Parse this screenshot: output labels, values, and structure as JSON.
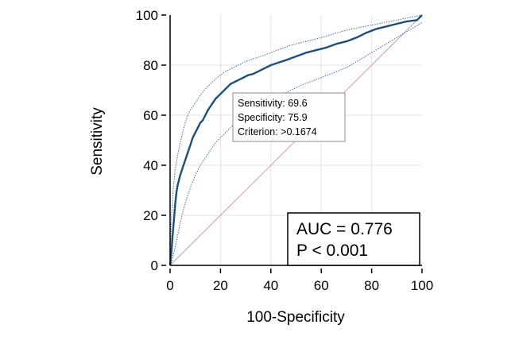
{
  "chart_data": {
    "type": "line",
    "title": "",
    "xlabel": "100-Specificity",
    "ylabel": "Sensitivity",
    "xlim": [
      0,
      100
    ],
    "ylim": [
      0,
      100
    ],
    "xticks": [
      0,
      20,
      40,
      60,
      80,
      100
    ],
    "yticks": [
      0,
      20,
      40,
      60,
      80,
      100
    ],
    "grid": true,
    "colors": {
      "roc": "#1f4e79",
      "ci": "#3a6aa8",
      "reference": "#c9a0a6",
      "grid": "#e3e3e3"
    },
    "series": [
      {
        "role": "roc",
        "x": [
          0,
          0.5,
          1,
          1.5,
          2,
          2.5,
          3,
          4,
          5,
          6,
          7,
          8,
          9,
          10,
          11,
          12,
          13,
          14,
          15,
          16,
          17,
          18,
          19,
          20,
          21,
          22,
          23,
          24,
          25,
          27,
          29,
          31,
          33,
          35,
          37,
          40,
          43,
          46,
          50,
          54,
          58,
          62,
          66,
          70,
          74,
          78,
          82,
          86,
          90,
          94,
          98,
          100
        ],
        "y": [
          0,
          5,
          12,
          18,
          24,
          29,
          32,
          36,
          39,
          42,
          45,
          48,
          51,
          53,
          55,
          57,
          58,
          60,
          62,
          63.5,
          65,
          66.5,
          67.5,
          68.5,
          69.5,
          70.5,
          71.5,
          72.5,
          73,
          74,
          75,
          76,
          76.5,
          77.5,
          78.5,
          80,
          81,
          82,
          83.5,
          85,
          86,
          87,
          88.5,
          89.5,
          91,
          93,
          94.5,
          95.5,
          96.5,
          97.5,
          98,
          100
        ]
      },
      {
        "role": "ci-upper",
        "x": [
          0,
          0.5,
          1,
          2,
          3,
          4,
          5,
          6,
          7,
          8,
          10,
          12,
          14,
          16,
          18,
          20,
          22,
          24,
          26,
          28,
          30,
          33,
          36,
          40,
          44,
          48,
          52,
          56,
          60,
          65,
          70,
          75,
          80,
          85,
          90,
          95,
          100
        ],
        "y": [
          0,
          18,
          28,
          38,
          44,
          49,
          53,
          57,
          60,
          62,
          65,
          68,
          70.5,
          72.5,
          74.5,
          76,
          77.5,
          78.5,
          79.5,
          80.5,
          81.5,
          82.5,
          83.5,
          85,
          86.5,
          88,
          89,
          90,
          91,
          92.5,
          94,
          95,
          96,
          97,
          98,
          99,
          100
        ]
      },
      {
        "role": "ci-lower",
        "x": [
          0,
          0.5,
          1,
          2,
          3,
          4,
          5,
          6,
          7,
          8,
          10,
          12,
          14,
          16,
          18,
          20,
          22,
          24,
          26,
          28,
          30,
          33,
          36,
          40,
          44,
          48,
          52,
          56,
          60,
          65,
          70,
          75,
          80,
          85,
          90,
          95,
          100
        ],
        "y": [
          0,
          1,
          3,
          7,
          12,
          17,
          21,
          25,
          28,
          31,
          36,
          40,
          43,
          46,
          49,
          51,
          53,
          55,
          57,
          59,
          61,
          63,
          64.5,
          66,
          68,
          70,
          72,
          73.5,
          75,
          77,
          79,
          82,
          85,
          88,
          91,
          94,
          97
        ]
      },
      {
        "role": "reference",
        "x": [
          0,
          100
        ],
        "y": [
          0,
          100
        ]
      }
    ],
    "callout": {
      "lines": [
        "Sensitivity: 69.6",
        "Specificity: 75.9",
        "Criterion: >0.1674"
      ]
    },
    "annotation": {
      "lines": [
        "AUC = 0.776",
        "P < 0.001"
      ]
    }
  }
}
